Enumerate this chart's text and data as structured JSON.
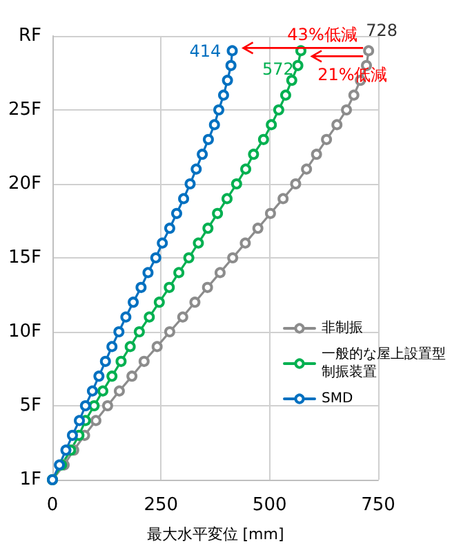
{
  "chart_data": {
    "type": "line",
    "xlabel": "最大水平変位 [mm]",
    "categories": [
      "RF",
      null,
      null,
      null,
      null,
      "25F",
      null,
      null,
      null,
      null,
      "20F",
      null,
      null,
      null,
      null,
      "15F",
      null,
      null,
      null,
      null,
      "10F",
      null,
      null,
      null,
      null,
      "5F",
      null,
      null,
      null,
      null,
      "1F"
    ],
    "orientation": "horizontal",
    "series": [
      {
        "name": "非制振",
        "color": "#8c8c8c",
        "values": [
          null,
          728,
          723,
          709,
          694,
          677,
          655,
          631,
          608,
          585,
          560,
          531,
          502,
          473,
          444,
          415,
          386,
          357,
          328,
          300,
          270,
          241,
          211,
          183,
          154,
          127,
          100,
          74,
          49,
          27,
          0
        ]
      },
      {
        "name": "一般的な屋上設置型制振装置",
        "color": "#00b050",
        "values": [
          null,
          572,
          565,
          551,
          537,
          521,
          504,
          486,
          463,
          445,
          424,
          402,
          380,
          358,
          336,
          314,
          291,
          269,
          246,
          223,
          200,
          179,
          158,
          137,
          116,
          96,
          76,
          61,
          42,
          21,
          0
        ]
      },
      {
        "name": "SMD",
        "color": "#0070c0",
        "values": [
          null,
          414,
          411,
          403,
          394,
          383,
          373,
          359,
          345,
          331,
          317,
          302,
          286,
          270,
          253,
          238,
          220,
          204,
          186,
          169,
          153,
          137,
          122,
          107,
          92,
          76,
          62,
          46,
          31,
          16,
          0
        ]
      }
    ],
    "xlim": [
      0,
      750
    ],
    "xticks": [
      0,
      250,
      500,
      750
    ],
    "annotations": [
      "728",
      "572",
      "414",
      "43%低減",
      "21%低減"
    ],
    "grid": true,
    "legend": "bottom right",
    "marker": "circle",
    "line_style": "solid"
  }
}
